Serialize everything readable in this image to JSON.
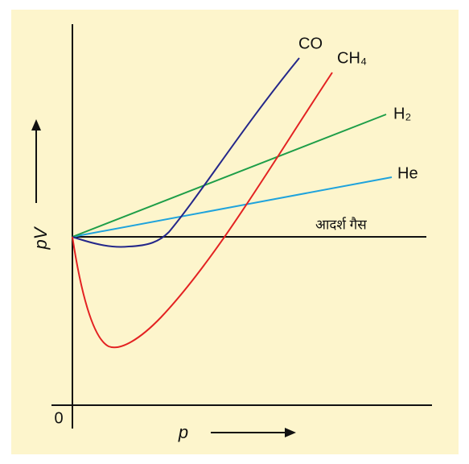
{
  "labels": {
    "co": "CO",
    "ch4": "CH₄",
    "h2": "H₂",
    "he": "He",
    "ideal": "आदर्श गैस"
  },
  "axes": {
    "y_label": "pV",
    "x_label": "p",
    "origin": "0"
  }
}
